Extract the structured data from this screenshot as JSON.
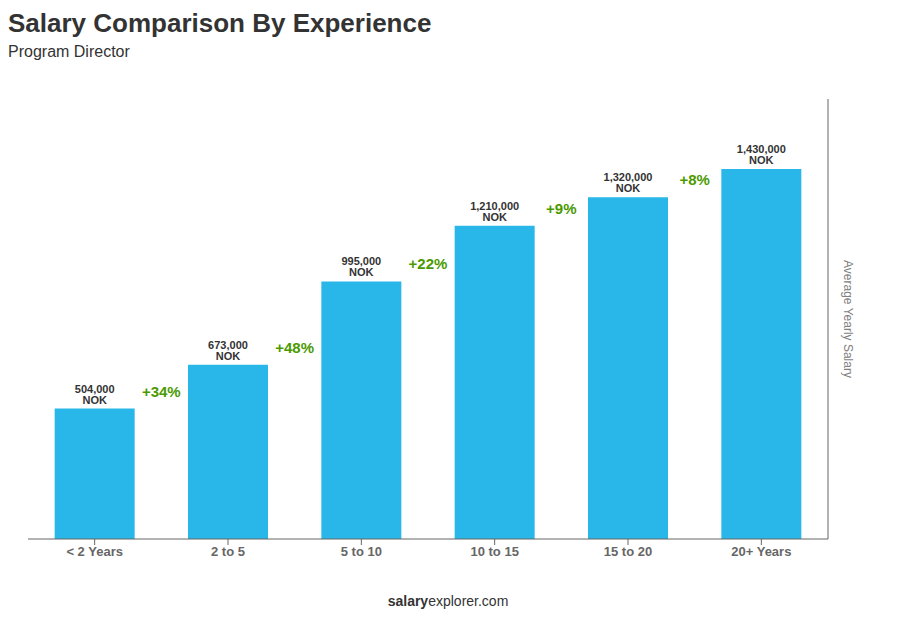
{
  "chart_data": {
    "type": "bar",
    "title": "Salary Comparison By Experience",
    "subtitle": "Program Director",
    "categories": [
      "< 2 Years",
      "2 to 5",
      "5 to 10",
      "10 to 15",
      "15 to 20",
      "20+ Years"
    ],
    "values": [
      504000,
      673000,
      995000,
      1210000,
      1320000,
      1430000
    ],
    "value_labels": [
      "504,000 NOK",
      "673,000 NOK",
      "995,000 NOK",
      "1,210,000 NOK",
      "1,320,000 NOK",
      "1,430,000 NOK"
    ],
    "data_labels": true,
    "color": "#29b6e8",
    "ylim": [
      0,
      1700000
    ],
    "y_label": "Average Yearly Salary",
    "annotations": [
      "+34%",
      "+48%",
      "+22%",
      "+9%",
      "+8%"
    ],
    "watermark": [
      "salary",
      "explorer.com"
    ],
    "tick_labels": "x",
    "grid": false
  }
}
